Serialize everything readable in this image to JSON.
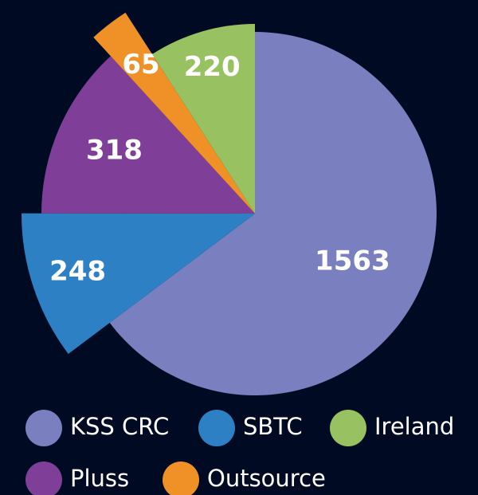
{
  "chart_data": {
    "type": "pie",
    "categories": [
      "KSS CRC",
      "SBTC",
      "Pluss",
      "Outsource",
      "Ireland"
    ],
    "values": [
      1563,
      248,
      318,
      65,
      220
    ],
    "colors": [
      "#7a7fbf",
      "#2e80c5",
      "#7f3f98",
      "#ef9127",
      "#98c262"
    ]
  }
}
